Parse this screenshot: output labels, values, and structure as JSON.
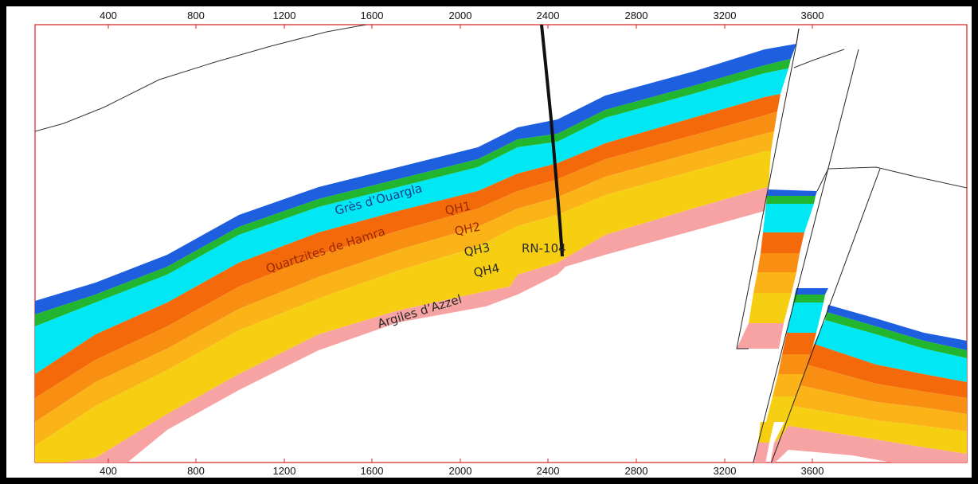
{
  "top_axis": {
    "ticks": [
      "400",
      "800",
      "1200",
      "1600",
      "2000",
      "2400",
      "2800",
      "3200",
      "3600"
    ]
  },
  "bottom_axis": {
    "ticks": [
      "400",
      "800",
      "1200",
      "1600",
      "2000",
      "2400",
      "2800",
      "3200",
      "3600"
    ]
  },
  "layers": {
    "gres": "Grès d’Ouargla",
    "quartzites": "Quartzites de Hamra",
    "argiles": "Argiles d’Azzel",
    "qh1": "QH1",
    "qh2": "QH2",
    "qh3": "QH3",
    "qh4": "QH4"
  },
  "well": {
    "name": "RN-104"
  },
  "colors": {
    "blue": "#1e5fe0",
    "green": "#22b530",
    "cyan": "#00e8f4",
    "orange1": "#f46a0a",
    "orange2": "#f98f12",
    "orange3": "#fbb418",
    "yellow": "#f7cf12",
    "pink": "#f8a3a3"
  }
}
